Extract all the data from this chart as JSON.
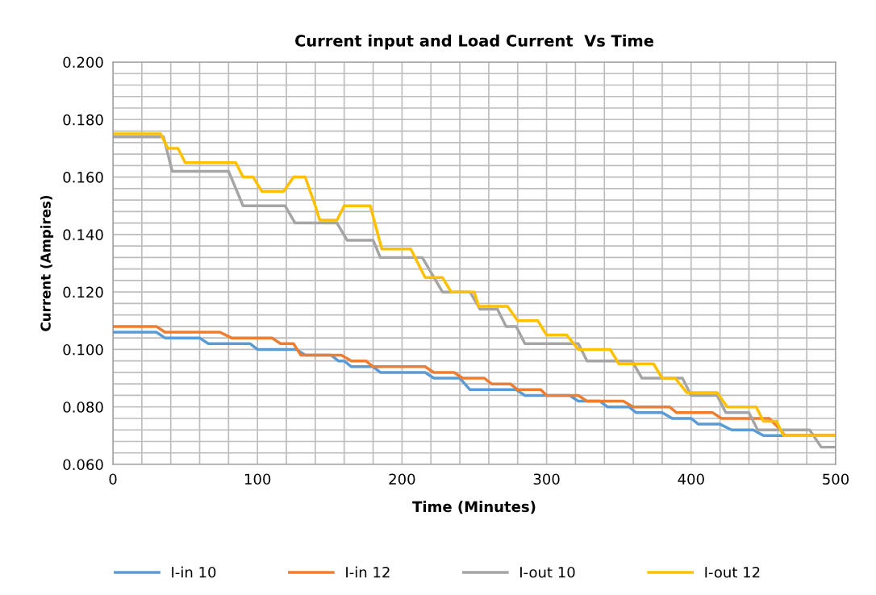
{
  "chart_data": {
    "type": "line",
    "title": "Current input and Load Current  Vs Time",
    "xlabel": "Time (Minutes)",
    "ylabel": "Current (Ampires)",
    "xlim": [
      0,
      500
    ],
    "ylim": [
      0.06,
      0.2
    ],
    "xticks": [
      0,
      {
        "value": 20,
        "label": null
      },
      {
        "value": 40,
        "label": null
      },
      {
        "value": 60,
        "label": null
      },
      {
        "value": 80,
        "label": null
      },
      100,
      {
        "value": 120,
        "label": null
      },
      {
        "value": 140,
        "label": null
      },
      {
        "value": 160,
        "label": null
      },
      {
        "value": 180,
        "label": null
      },
      200,
      {
        "value": 220,
        "label": null
      },
      {
        "value": 240,
        "label": null
      },
      {
        "value": 260,
        "label": null
      },
      {
        "value": 280,
        "label": null
      },
      300,
      {
        "value": 320,
        "label": null
      },
      {
        "value": 340,
        "label": null
      },
      {
        "value": 360,
        "label": null
      },
      {
        "value": 380,
        "label": null
      },
      400,
      {
        "value": 420,
        "label": null
      },
      {
        "value": 440,
        "label": null
      },
      {
        "value": 460,
        "label": null
      },
      {
        "value": 480,
        "label": null
      },
      500
    ],
    "yticks": [
      {
        "value": 0.06,
        "label": "0.060"
      },
      {
        "value": 0.064,
        "label": null
      },
      {
        "value": 0.068,
        "label": null
      },
      {
        "value": 0.072,
        "label": null
      },
      {
        "value": 0.076,
        "label": null
      },
      {
        "value": 0.08,
        "label": "0.080"
      },
      {
        "value": 0.084,
        "label": null
      },
      {
        "value": 0.088,
        "label": null
      },
      {
        "value": 0.092,
        "label": null
      },
      {
        "value": 0.096,
        "label": null
      },
      {
        "value": 0.1,
        "label": "0.100"
      },
      {
        "value": 0.104,
        "label": null
      },
      {
        "value": 0.108,
        "label": null
      },
      {
        "value": 0.112,
        "label": null
      },
      {
        "value": 0.116,
        "label": null
      },
      {
        "value": 0.12,
        "label": "0.120"
      },
      {
        "value": 0.124,
        "label": null
      },
      {
        "value": 0.128,
        "label": null
      },
      {
        "value": 0.132,
        "label": null
      },
      {
        "value": 0.136,
        "label": null
      },
      {
        "value": 0.14,
        "label": "0.140"
      },
      {
        "value": 0.144,
        "label": null
      },
      {
        "value": 0.148,
        "label": null
      },
      {
        "value": 0.152,
        "label": null
      },
      {
        "value": 0.156,
        "label": null
      },
      {
        "value": 0.16,
        "label": "0.160"
      },
      {
        "value": 0.164,
        "label": null
      },
      {
        "value": 0.168,
        "label": null
      },
      {
        "value": 0.172,
        "label": null
      },
      {
        "value": 0.176,
        "label": null
      },
      {
        "value": 0.18,
        "label": "0.180"
      },
      {
        "value": 0.184,
        "label": null
      },
      {
        "value": 0.188,
        "label": null
      },
      {
        "value": 0.192,
        "label": null
      },
      {
        "value": 0.196,
        "label": null
      },
      {
        "value": 0.2,
        "label": "0.200"
      }
    ],
    "grid": true,
    "legend": "bottom",
    "marker": "none",
    "line_style": "solid",
    "series": [
      {
        "name": "I-in 10",
        "color": "#5b9bd5",
        "x": [
          0,
          30,
          36,
          60,
          66,
          95,
          100,
          127,
          133,
          151,
          156,
          160,
          165,
          180,
          185,
          216,
          222,
          240,
          247,
          279,
          285,
          316,
          322,
          337,
          342,
          357,
          362,
          380,
          387,
          400,
          405,
          420,
          428,
          443,
          450,
          498
        ],
        "values": [
          0.106,
          0.106,
          0.104,
          0.104,
          0.102,
          0.102,
          0.1,
          0.1,
          0.098,
          0.098,
          0.096,
          0.096,
          0.094,
          0.094,
          0.092,
          0.092,
          0.09,
          0.09,
          0.086,
          0.086,
          0.084,
          0.084,
          0.082,
          0.082,
          0.08,
          0.08,
          0.078,
          0.078,
          0.076,
          0.076,
          0.074,
          0.074,
          0.072,
          0.072,
          0.07,
          0.07
        ]
      },
      {
        "name": "I-in 12",
        "color": "#ed7d31",
        "x": [
          0,
          30,
          36,
          74,
          82,
          110,
          116,
          125,
          130,
          158,
          165,
          175,
          180,
          216,
          222,
          236,
          242,
          257,
          262,
          275,
          280,
          296,
          300,
          322,
          328,
          353,
          360,
          385,
          390,
          415,
          421,
          454,
          460,
          465,
          500
        ],
        "values": [
          0.108,
          0.108,
          0.106,
          0.106,
          0.104,
          0.104,
          0.102,
          0.102,
          0.098,
          0.098,
          0.096,
          0.096,
          0.094,
          0.094,
          0.092,
          0.092,
          0.09,
          0.09,
          0.088,
          0.088,
          0.086,
          0.086,
          0.084,
          0.084,
          0.082,
          0.082,
          0.08,
          0.08,
          0.078,
          0.078,
          0.076,
          0.076,
          0.073,
          0.07,
          0.07
        ]
      },
      {
        "name": "I-out 10",
        "color": "#a5a5a5",
        "x": [
          0,
          35,
          41,
          80,
          90,
          119,
          126,
          155,
          162,
          180,
          185,
          214,
          228,
          247,
          254,
          266,
          272,
          279,
          285,
          322,
          328,
          359,
          366,
          394,
          400,
          418,
          424,
          440,
          446,
          482,
          490,
          500
        ],
        "values": [
          0.174,
          0.174,
          0.162,
          0.162,
          0.15,
          0.15,
          0.144,
          0.144,
          0.138,
          0.138,
          0.132,
          0.132,
          0.12,
          0.12,
          0.114,
          0.114,
          0.108,
          0.108,
          0.102,
          0.102,
          0.096,
          0.096,
          0.09,
          0.09,
          0.084,
          0.084,
          0.078,
          0.078,
          0.072,
          0.072,
          0.066,
          0.066
        ]
      },
      {
        "name": "I-out 12",
        "color": "#ffc000",
        "x": [
          0,
          33,
          38,
          45,
          50,
          85,
          90,
          97,
          103,
          118,
          125,
          133,
          140,
          143,
          155,
          160,
          178,
          186,
          206,
          216,
          228,
          234,
          250,
          253,
          273,
          280,
          294,
          300,
          314,
          322,
          344,
          350,
          374,
          380,
          389,
          397,
          418,
          425,
          445,
          450,
          459,
          464,
          500
        ],
        "values": [
          0.175,
          0.175,
          0.17,
          0.17,
          0.165,
          0.165,
          0.16,
          0.16,
          0.155,
          0.155,
          0.16,
          0.16,
          0.15,
          0.145,
          0.145,
          0.15,
          0.15,
          0.135,
          0.135,
          0.125,
          0.125,
          0.12,
          0.12,
          0.115,
          0.115,
          0.11,
          0.11,
          0.105,
          0.105,
          0.1,
          0.1,
          0.095,
          0.095,
          0.09,
          0.09,
          0.085,
          0.085,
          0.08,
          0.08,
          0.075,
          0.075,
          0.07,
          0.07
        ]
      }
    ]
  }
}
